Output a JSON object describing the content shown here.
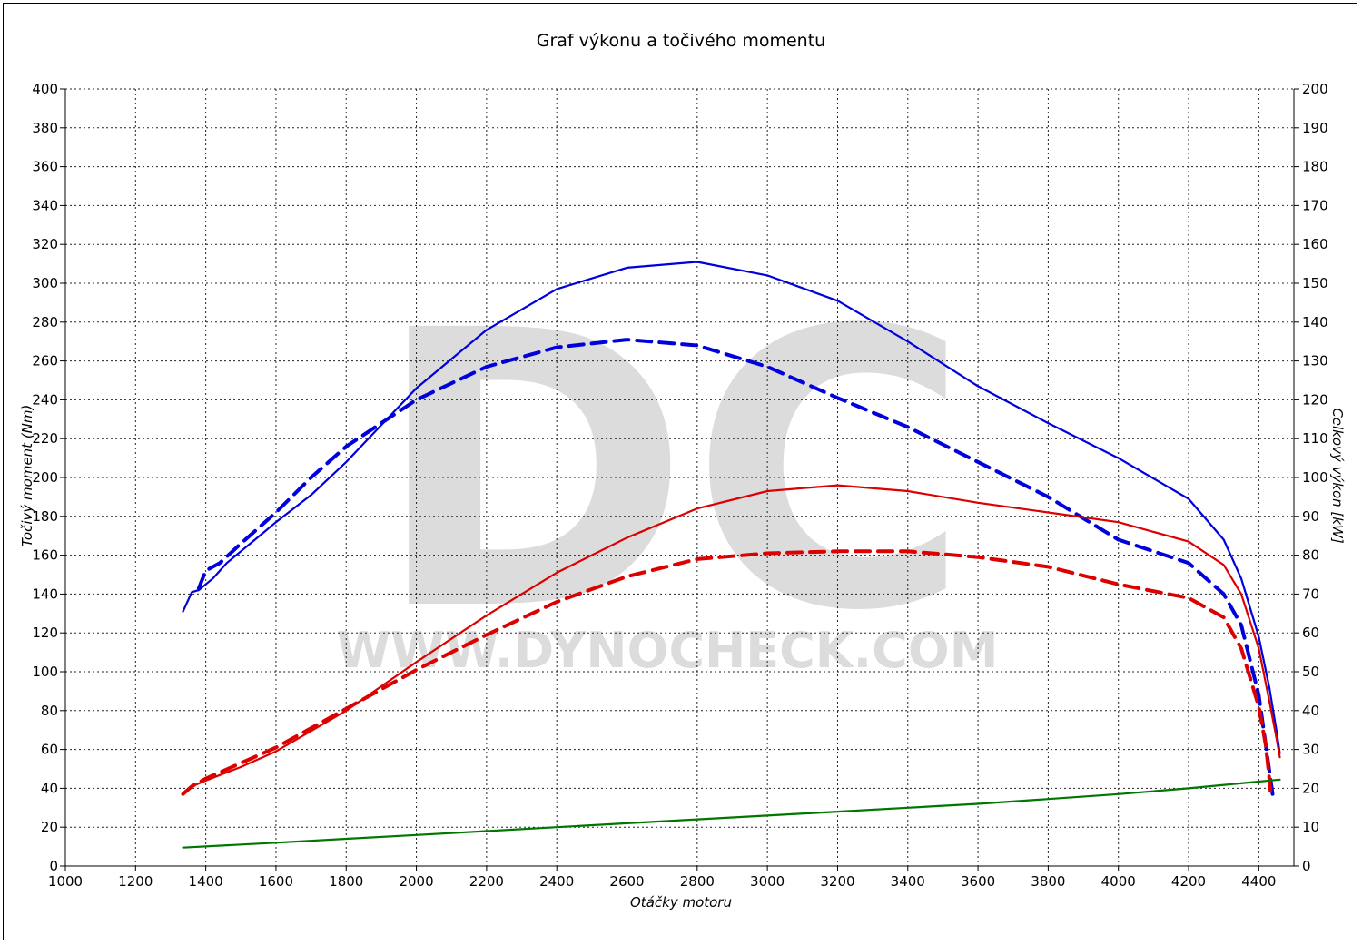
{
  "chart_data": {
    "type": "line",
    "title": "Graf výkonu a točivého momentu",
    "xlabel": "Otáčky motoru",
    "ylabel": "Točivý moment (Nm)",
    "y2label": "Celkový výkon [kW]",
    "xlim": [
      1000,
      4500
    ],
    "ylim": [
      0,
      400
    ],
    "y2lim": [
      0,
      200
    ],
    "x_ticks": [
      1000,
      1200,
      1400,
      1600,
      1800,
      2000,
      2200,
      2400,
      2600,
      2800,
      3000,
      3200,
      3400,
      3600,
      3800,
      4000,
      4200,
      4400
    ],
    "y_ticks": [
      0,
      20,
      40,
      60,
      80,
      100,
      120,
      140,
      160,
      180,
      200,
      220,
      240,
      260,
      280,
      300,
      320,
      340,
      360,
      380,
      400
    ],
    "y2_ticks": [
      0,
      10,
      20,
      30,
      40,
      50,
      60,
      70,
      80,
      90,
      100,
      110,
      120,
      130,
      140,
      150,
      160,
      170,
      180,
      190,
      200
    ],
    "grid": true,
    "watermark": {
      "logo": "DC",
      "text": "WWW.DYNOCHECK.COM"
    },
    "series": [
      {
        "color": "#0000dd",
        "style": "solid",
        "axis": "left",
        "x": [
          1335,
          1360,
          1380,
          1400,
          1420,
          1460,
          1500,
          1560,
          1600,
          1700,
          1800,
          1900,
          2000,
          2200,
          2400,
          2600,
          2800,
          3000,
          3200,
          3400,
          3600,
          3800,
          4000,
          4200,
          4300,
          4350,
          4400,
          4430,
          4450,
          4460
        ],
        "y": [
          131,
          141,
          142,
          145,
          148,
          156,
          162,
          171,
          177,
          191,
          208,
          227,
          246,
          276,
          297,
          308,
          311,
          304,
          291,
          270,
          247,
          228,
          210,
          189,
          168,
          148,
          118,
          92,
          70,
          58
        ]
      },
      {
        "color": "#0000dd",
        "style": "dashed",
        "axis": "left",
        "x": [
          1380,
          1400,
          1440,
          1500,
          1600,
          1700,
          1800,
          2000,
          2200,
          2400,
          2600,
          2800,
          3000,
          3200,
          3400,
          3600,
          3800,
          4000,
          4200,
          4300,
          4350,
          4400,
          4420,
          4440
        ],
        "y": [
          143,
          152,
          156,
          166,
          182,
          200,
          216,
          240,
          257,
          267,
          271,
          268,
          257,
          241,
          226,
          208,
          190,
          168,
          156,
          140,
          124,
          88,
          62,
          36
        ]
      },
      {
        "color": "#dd0000",
        "style": "solid",
        "axis": "left",
        "x": [
          1335,
          1360,
          1400,
          1500,
          1600,
          1800,
          2000,
          2200,
          2400,
          2600,
          2800,
          3000,
          3200,
          3400,
          3600,
          3800,
          4000,
          4200,
          4300,
          4350,
          4400,
          4430,
          4450,
          4460
        ],
        "y": [
          37,
          41,
          44,
          51,
          59,
          80,
          105,
          129,
          151,
          169,
          184,
          193,
          196,
          193,
          187,
          182,
          177,
          167,
          155,
          140,
          112,
          85,
          66,
          56
        ]
      },
      {
        "color": "#dd0000",
        "style": "dashed",
        "axis": "left",
        "x": [
          1335,
          1360,
          1400,
          1500,
          1600,
          1800,
          2000,
          2200,
          2400,
          2600,
          2800,
          3000,
          3200,
          3400,
          3600,
          3800,
          4000,
          4200,
          4300,
          4350,
          4400,
          4420,
          4430,
          4435
        ],
        "y": [
          37,
          41,
          45,
          53,
          61,
          81,
          101,
          119,
          136,
          149,
          158,
          161,
          162,
          162,
          159,
          154,
          145,
          138,
          128,
          112,
          82,
          62,
          45,
          35
        ]
      },
      {
        "color": "#007700",
        "style": "solid",
        "axis": "left",
        "x": [
          1335,
          1600,
          1800,
          2000,
          2200,
          2400,
          2600,
          2800,
          3000,
          3200,
          3400,
          3600,
          3800,
          4000,
          4200,
          4460
        ],
        "y": [
          9.5,
          12,
          14,
          16,
          18,
          20,
          22,
          24,
          26,
          28,
          30,
          32,
          34.5,
          37,
          40,
          44.5
        ]
      }
    ]
  }
}
